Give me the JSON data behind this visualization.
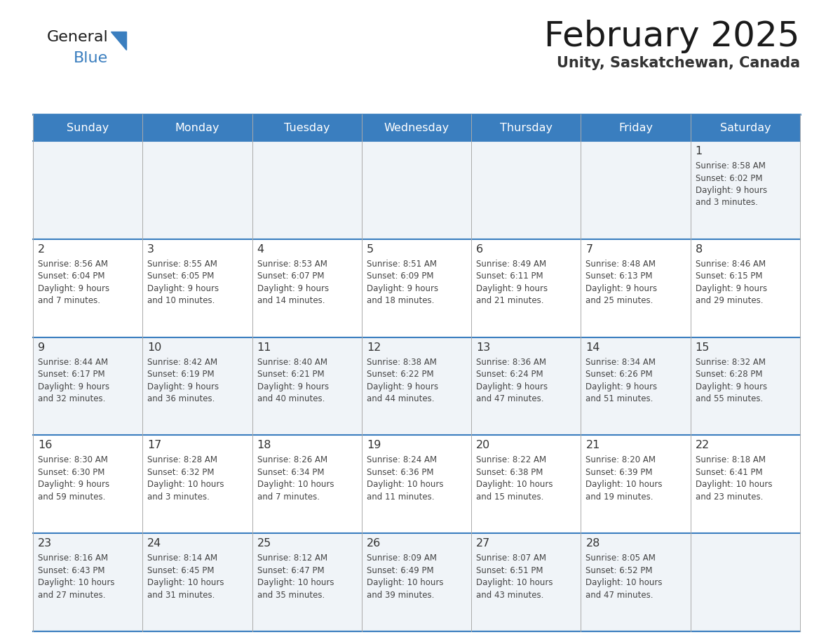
{
  "title": "February 2025",
  "subtitle": "Unity, Saskatchewan, Canada",
  "header_bg_color": "#3a7ebf",
  "header_text_color": "#ffffff",
  "day_names": [
    "Sunday",
    "Monday",
    "Tuesday",
    "Wednesday",
    "Thursday",
    "Friday",
    "Saturday"
  ],
  "cell_bg_even": "#f0f4f8",
  "cell_bg_odd": "#ffffff",
  "border_color": "#3a7ebf",
  "row_border_color": "#3a7ebf",
  "grid_color": "#aaaaaa",
  "number_color": "#333333",
  "info_color": "#444444",
  "title_color": "#1a1a1a",
  "subtitle_color": "#333333",
  "logo_text1": "General",
  "logo_text2": "Blue",
  "logo_color1": "#1a1a1a",
  "logo_color2": "#3a7ebf",
  "logo_triangle_color": "#3a7ebf",
  "weeks": [
    [
      {
        "day": null,
        "info": ""
      },
      {
        "day": null,
        "info": ""
      },
      {
        "day": null,
        "info": ""
      },
      {
        "day": null,
        "info": ""
      },
      {
        "day": null,
        "info": ""
      },
      {
        "day": null,
        "info": ""
      },
      {
        "day": 1,
        "info": "Sunrise: 8:58 AM\nSunset: 6:02 PM\nDaylight: 9 hours\nand 3 minutes."
      }
    ],
    [
      {
        "day": 2,
        "info": "Sunrise: 8:56 AM\nSunset: 6:04 PM\nDaylight: 9 hours\nand 7 minutes."
      },
      {
        "day": 3,
        "info": "Sunrise: 8:55 AM\nSunset: 6:05 PM\nDaylight: 9 hours\nand 10 minutes."
      },
      {
        "day": 4,
        "info": "Sunrise: 8:53 AM\nSunset: 6:07 PM\nDaylight: 9 hours\nand 14 minutes."
      },
      {
        "day": 5,
        "info": "Sunrise: 8:51 AM\nSunset: 6:09 PM\nDaylight: 9 hours\nand 18 minutes."
      },
      {
        "day": 6,
        "info": "Sunrise: 8:49 AM\nSunset: 6:11 PM\nDaylight: 9 hours\nand 21 minutes."
      },
      {
        "day": 7,
        "info": "Sunrise: 8:48 AM\nSunset: 6:13 PM\nDaylight: 9 hours\nand 25 minutes."
      },
      {
        "day": 8,
        "info": "Sunrise: 8:46 AM\nSunset: 6:15 PM\nDaylight: 9 hours\nand 29 minutes."
      }
    ],
    [
      {
        "day": 9,
        "info": "Sunrise: 8:44 AM\nSunset: 6:17 PM\nDaylight: 9 hours\nand 32 minutes."
      },
      {
        "day": 10,
        "info": "Sunrise: 8:42 AM\nSunset: 6:19 PM\nDaylight: 9 hours\nand 36 minutes."
      },
      {
        "day": 11,
        "info": "Sunrise: 8:40 AM\nSunset: 6:21 PM\nDaylight: 9 hours\nand 40 minutes."
      },
      {
        "day": 12,
        "info": "Sunrise: 8:38 AM\nSunset: 6:22 PM\nDaylight: 9 hours\nand 44 minutes."
      },
      {
        "day": 13,
        "info": "Sunrise: 8:36 AM\nSunset: 6:24 PM\nDaylight: 9 hours\nand 47 minutes."
      },
      {
        "day": 14,
        "info": "Sunrise: 8:34 AM\nSunset: 6:26 PM\nDaylight: 9 hours\nand 51 minutes."
      },
      {
        "day": 15,
        "info": "Sunrise: 8:32 AM\nSunset: 6:28 PM\nDaylight: 9 hours\nand 55 minutes."
      }
    ],
    [
      {
        "day": 16,
        "info": "Sunrise: 8:30 AM\nSunset: 6:30 PM\nDaylight: 9 hours\nand 59 minutes."
      },
      {
        "day": 17,
        "info": "Sunrise: 8:28 AM\nSunset: 6:32 PM\nDaylight: 10 hours\nand 3 minutes."
      },
      {
        "day": 18,
        "info": "Sunrise: 8:26 AM\nSunset: 6:34 PM\nDaylight: 10 hours\nand 7 minutes."
      },
      {
        "day": 19,
        "info": "Sunrise: 8:24 AM\nSunset: 6:36 PM\nDaylight: 10 hours\nand 11 minutes."
      },
      {
        "day": 20,
        "info": "Sunrise: 8:22 AM\nSunset: 6:38 PM\nDaylight: 10 hours\nand 15 minutes."
      },
      {
        "day": 21,
        "info": "Sunrise: 8:20 AM\nSunset: 6:39 PM\nDaylight: 10 hours\nand 19 minutes."
      },
      {
        "day": 22,
        "info": "Sunrise: 8:18 AM\nSunset: 6:41 PM\nDaylight: 10 hours\nand 23 minutes."
      }
    ],
    [
      {
        "day": 23,
        "info": "Sunrise: 8:16 AM\nSunset: 6:43 PM\nDaylight: 10 hours\nand 27 minutes."
      },
      {
        "day": 24,
        "info": "Sunrise: 8:14 AM\nSunset: 6:45 PM\nDaylight: 10 hours\nand 31 minutes."
      },
      {
        "day": 25,
        "info": "Sunrise: 8:12 AM\nSunset: 6:47 PM\nDaylight: 10 hours\nand 35 minutes."
      },
      {
        "day": 26,
        "info": "Sunrise: 8:09 AM\nSunset: 6:49 PM\nDaylight: 10 hours\nand 39 minutes."
      },
      {
        "day": 27,
        "info": "Sunrise: 8:07 AM\nSunset: 6:51 PM\nDaylight: 10 hours\nand 43 minutes."
      },
      {
        "day": 28,
        "info": "Sunrise: 8:05 AM\nSunset: 6:52 PM\nDaylight: 10 hours\nand 47 minutes."
      },
      {
        "day": null,
        "info": ""
      }
    ]
  ]
}
